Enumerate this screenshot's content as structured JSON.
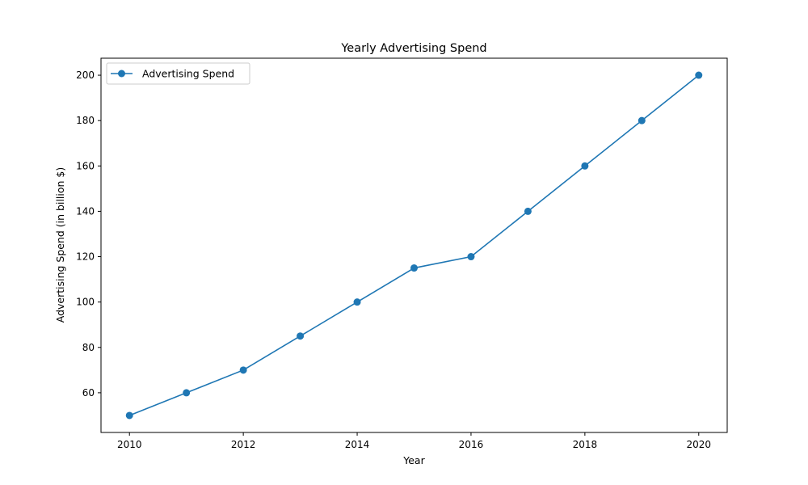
{
  "chart_data": {
    "type": "line",
    "title": "Yearly Advertising Spend",
    "xlabel": "Year",
    "ylabel": "Advertising Spend (in billion $)",
    "x": [
      2010,
      2011,
      2012,
      2013,
      2014,
      2015,
      2016,
      2017,
      2018,
      2019,
      2020
    ],
    "series": [
      {
        "name": "Advertising Spend",
        "values": [
          50,
          60,
          70,
          85,
          100,
          115,
          120,
          140,
          160,
          180,
          200
        ],
        "color": "#1f77b4",
        "marker": "circle"
      }
    ],
    "xlim": [
      2009.5,
      2020.5
    ],
    "ylim": [
      42.5,
      207.5
    ],
    "xticks": [
      2010,
      2012,
      2014,
      2016,
      2018,
      2020
    ],
    "yticks": [
      60,
      80,
      100,
      120,
      140,
      160,
      180,
      200
    ],
    "grid": false,
    "legend": "top-left"
  }
}
